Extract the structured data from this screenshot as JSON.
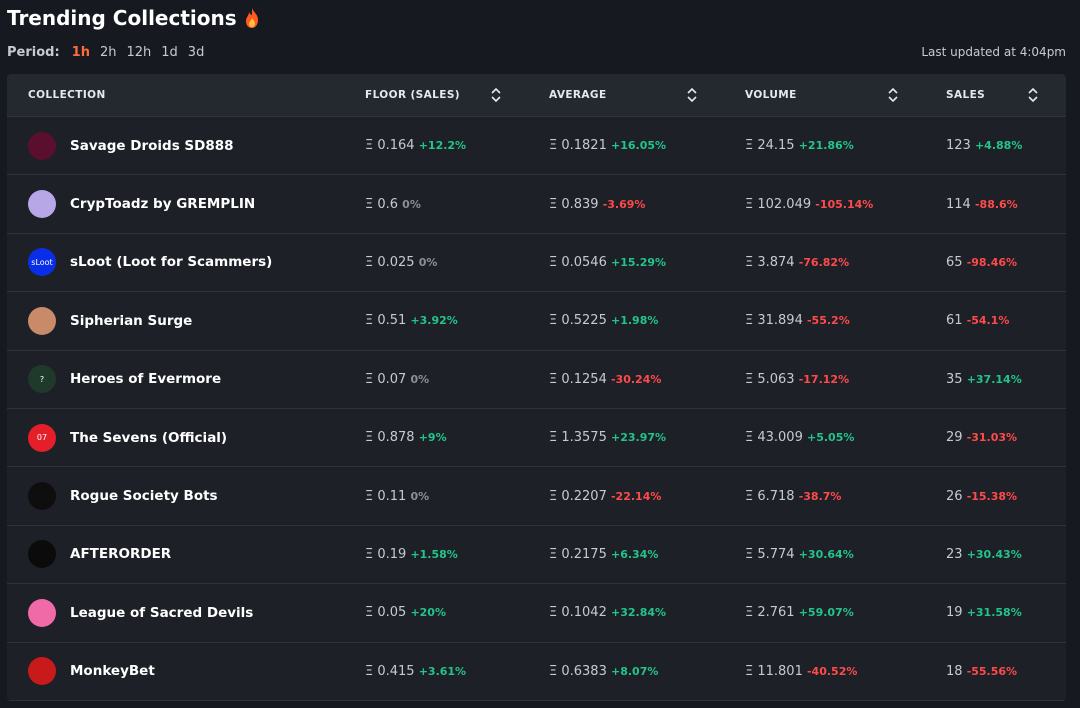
{
  "header": {
    "title": "Trending Collections",
    "fire_icon": "fire-icon"
  },
  "period": {
    "label": "Period:",
    "options": [
      "1h",
      "2h",
      "12h",
      "1d",
      "3d"
    ],
    "selected": "1h"
  },
  "last_updated": "Last updated at 4:04pm",
  "columns": [
    "COLLECTION",
    "FLOOR (SALES)",
    "AVERAGE",
    "VOLUME",
    "SALES"
  ],
  "accent_positive": "#22c48a",
  "accent_negative": "#ff4a4a",
  "rows": [
    {
      "name": "Savage Droids SD888",
      "avatar_color": "#5b0f2e",
      "floor": "Ξ 0.164",
      "floor_chg": "+12.2%",
      "floor_dir": "pos",
      "avg": "Ξ 0.1821",
      "avg_chg": "+16.05%",
      "avg_dir": "pos",
      "vol": "Ξ 24.15",
      "vol_chg": "+21.86%",
      "vol_dir": "pos",
      "sales": "123",
      "sales_chg": "+4.88%",
      "sales_dir": "pos"
    },
    {
      "name": "CrypToadz by GREMPLIN",
      "avatar_color": "#b7a7e6",
      "floor": "Ξ 0.6",
      "floor_chg": "0%",
      "floor_dir": "zero",
      "avg": "Ξ 0.839",
      "avg_chg": "-3.69%",
      "avg_dir": "neg",
      "vol": "Ξ 102.049",
      "vol_chg": "-105.14%",
      "vol_dir": "neg",
      "sales": "114",
      "sales_chg": "-88.6%",
      "sales_dir": "neg"
    },
    {
      "name": "sLoot (Loot for Scammers)",
      "avatar_color": "#0a2ee8",
      "avatar_text": "sLoot",
      "floor": "Ξ 0.025",
      "floor_chg": "0%",
      "floor_dir": "zero",
      "avg": "Ξ 0.0546",
      "avg_chg": "+15.29%",
      "avg_dir": "pos",
      "vol": "Ξ 3.874",
      "vol_chg": "-76.82%",
      "vol_dir": "neg",
      "sales": "65",
      "sales_chg": "-98.46%",
      "sales_dir": "neg"
    },
    {
      "name": "Sipherian Surge",
      "avatar_color": "#c98a6a",
      "floor": "Ξ 0.51",
      "floor_chg": "+3.92%",
      "floor_dir": "pos",
      "avg": "Ξ 0.5225",
      "avg_chg": "+1.98%",
      "avg_dir": "pos",
      "vol": "Ξ 31.894",
      "vol_chg": "-55.2%",
      "vol_dir": "neg",
      "sales": "61",
      "sales_chg": "-54.1%",
      "sales_dir": "neg"
    },
    {
      "name": "Heroes of Evermore",
      "avatar_color": "#1f3a2a",
      "avatar_text": "?",
      "floor": "Ξ 0.07",
      "floor_chg": "0%",
      "floor_dir": "zero",
      "avg": "Ξ 0.1254",
      "avg_chg": "-30.24%",
      "avg_dir": "neg",
      "vol": "Ξ 5.063",
      "vol_chg": "-17.12%",
      "vol_dir": "neg",
      "sales": "35",
      "sales_chg": "+37.14%",
      "sales_dir": "pos"
    },
    {
      "name": "The Sevens (Official)",
      "avatar_color": "#e41f2a",
      "avatar_text": "07",
      "floor": "Ξ 0.878",
      "floor_chg": "+9%",
      "floor_dir": "pos",
      "avg": "Ξ 1.3575",
      "avg_chg": "+23.97%",
      "avg_dir": "pos",
      "vol": "Ξ 43.009",
      "vol_chg": "+5.05%",
      "vol_dir": "pos",
      "sales": "29",
      "sales_chg": "-31.03%",
      "sales_dir": "neg"
    },
    {
      "name": "Rogue Society Bots",
      "avatar_color": "#0e0e0e",
      "floor": "Ξ 0.11",
      "floor_chg": "0%",
      "floor_dir": "zero",
      "avg": "Ξ 0.2207",
      "avg_chg": "-22.14%",
      "avg_dir": "neg",
      "vol": "Ξ 6.718",
      "vol_chg": "-38.7%",
      "vol_dir": "neg",
      "sales": "26",
      "sales_chg": "-15.38%",
      "sales_dir": "neg"
    },
    {
      "name": "AFTERORDER",
      "avatar_color": "#0b0b0b",
      "floor": "Ξ 0.19",
      "floor_chg": "+1.58%",
      "floor_dir": "pos",
      "avg": "Ξ 0.2175",
      "avg_chg": "+6.34%",
      "avg_dir": "pos",
      "vol": "Ξ 5.774",
      "vol_chg": "+30.64%",
      "vol_dir": "pos",
      "sales": "23",
      "sales_chg": "+30.43%",
      "sales_dir": "pos"
    },
    {
      "name": "League of Sacred Devils",
      "avatar_color": "#f06aa8",
      "floor": "Ξ 0.05",
      "floor_chg": "+20%",
      "floor_dir": "pos",
      "avg": "Ξ 0.1042",
      "avg_chg": "+32.84%",
      "avg_dir": "pos",
      "vol": "Ξ 2.761",
      "vol_chg": "+59.07%",
      "vol_dir": "pos",
      "sales": "19",
      "sales_chg": "+31.58%",
      "sales_dir": "pos"
    },
    {
      "name": "MonkeyBet",
      "avatar_color": "#c81a1a",
      "floor": "Ξ 0.415",
      "floor_chg": "+3.61%",
      "floor_dir": "pos",
      "avg": "Ξ 0.6383",
      "avg_chg": "+8.07%",
      "avg_dir": "pos",
      "vol": "Ξ 11.801",
      "vol_chg": "-40.52%",
      "vol_dir": "neg",
      "sales": "18",
      "sales_chg": "-55.56%",
      "sales_dir": "neg"
    }
  ]
}
